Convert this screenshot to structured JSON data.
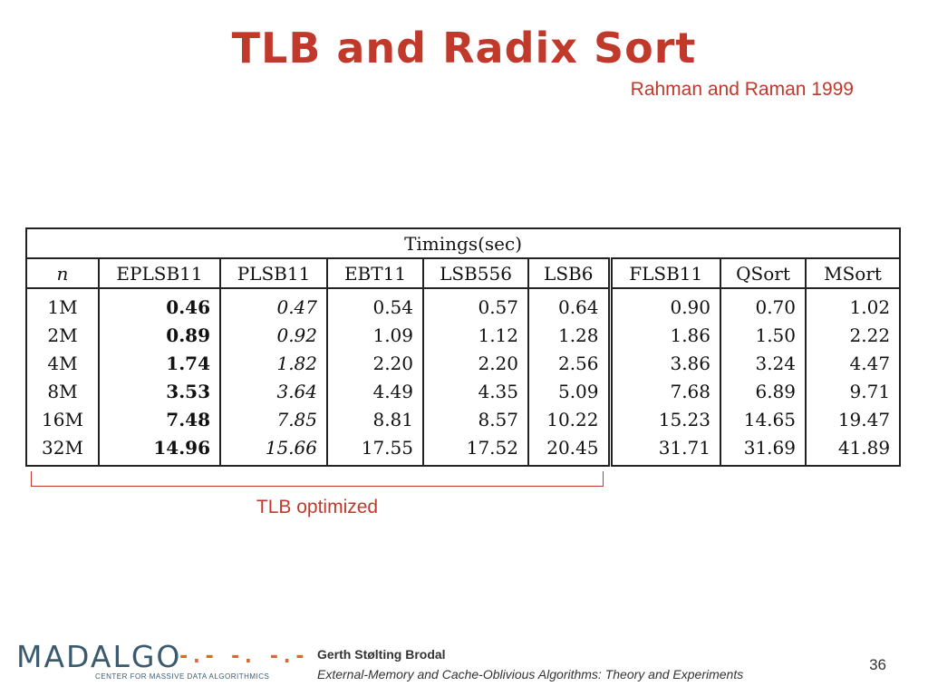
{
  "slide": {
    "title": "TLB and Radix Sort",
    "subtitle": "Rahman and Raman 1999"
  },
  "table": {
    "caption": "Timings(sec)",
    "columns": [
      "n",
      "EPLSB11",
      "PLSB11",
      "EBT11",
      "LSB556",
      "LSB6",
      "FLSB11",
      "QSort",
      "MSort"
    ],
    "rows": [
      {
        "n": "1M",
        "values": [
          "0.46",
          "0.47",
          "0.54",
          "0.57",
          "0.64",
          "0.90",
          "0.70",
          "1.02"
        ]
      },
      {
        "n": "2M",
        "values": [
          "0.89",
          "0.92",
          "1.09",
          "1.12",
          "1.28",
          "1.86",
          "1.50",
          "2.22"
        ]
      },
      {
        "n": "4M",
        "values": [
          "1.74",
          "1.82",
          "2.20",
          "2.20",
          "2.56",
          "3.86",
          "3.24",
          "4.47"
        ]
      },
      {
        "n": "8M",
        "values": [
          "3.53",
          "3.64",
          "4.49",
          "4.35",
          "5.09",
          "7.68",
          "6.89",
          "9.71"
        ]
      },
      {
        "n": "16M",
        "values": [
          "7.48",
          "7.85",
          "8.81",
          "8.57",
          "10.22",
          "15.23",
          "14.65",
          "19.47"
        ]
      },
      {
        "n": "32M",
        "values": [
          "14.96",
          "15.66",
          "17.55",
          "17.52",
          "20.45",
          "31.71",
          "31.69",
          "41.89"
        ]
      }
    ]
  },
  "annotation": {
    "label": "TLB optimized"
  },
  "footer": {
    "logo_text": "MADALGO",
    "logo_dashes": "-.- -. -.-",
    "logo_subtext": "CENTER FOR MASSIVE DATA ALGORITHMICS",
    "author": "Gerth Stølting Brodal",
    "course": "External-Memory and Cache-Oblivious Algorithms: Theory and Experiments",
    "page_number": "36"
  },
  "colors": {
    "accent": "#c0392b",
    "logo_blue": "#3c5a6e",
    "logo_orange": "#e8632a"
  }
}
